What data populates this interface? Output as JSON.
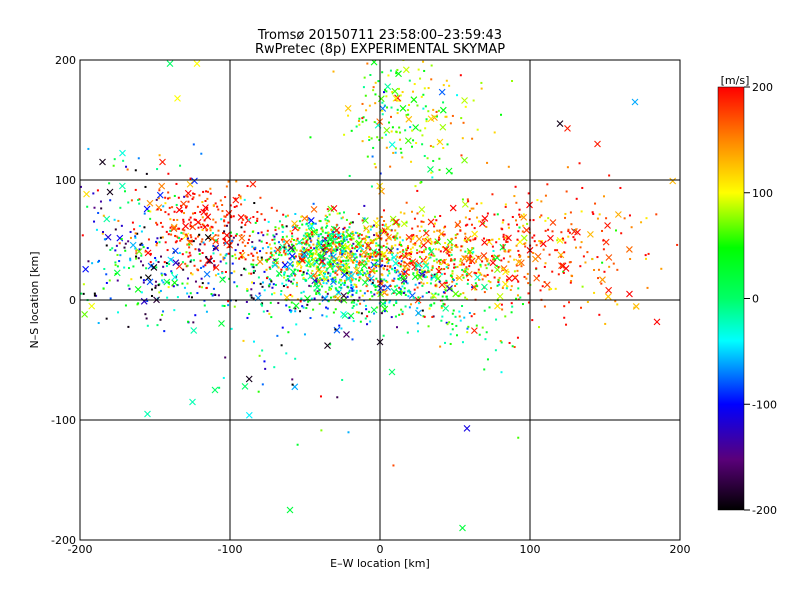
{
  "title_line1": "Tromsø 20150711 23:58:00–23:59:43",
  "title_line2": "RwPretec (8p) EXPERIMENTAL SKYMAP",
  "chart_data": {
    "type": "scatter",
    "xlabel": "E–W location [km]",
    "ylabel": "N–S location [km]",
    "xlim": [
      -200,
      200
    ],
    "ylim": [
      -200,
      200
    ],
    "xticks": [
      -200,
      -100,
      0,
      100,
      200
    ],
    "yticks": [
      -200,
      -100,
      0,
      100,
      200
    ],
    "grid": true,
    "marker_styles": [
      "dot",
      "x"
    ],
    "colorbar": {
      "label": "[m/s]",
      "range": [
        -200,
        200
      ],
      "ticks": [
        -200,
        -100,
        0,
        100,
        200
      ],
      "colormap": "black-purple-blue-cyan-green-yellow-red"
    },
    "clusters": [
      {
        "x": -38,
        "y": 40,
        "sx": 22,
        "sy": 14,
        "v": 45,
        "sv": 90,
        "n": 700
      },
      {
        "x": 30,
        "y": 38,
        "sx": 40,
        "sy": 18,
        "v": 140,
        "sv": 60,
        "n": 650
      },
      {
        "x": -115,
        "y": 60,
        "sx": 25,
        "sy": 20,
        "v": 190,
        "sv": 30,
        "n": 300
      },
      {
        "x": -120,
        "y": 20,
        "sx": 40,
        "sy": 20,
        "v": -80,
        "sv": 90,
        "n": 250
      },
      {
        "x": -10,
        "y": 10,
        "sx": 35,
        "sy": 15,
        "v": -20,
        "sv": 70,
        "n": 350
      },
      {
        "x": 110,
        "y": 40,
        "sx": 40,
        "sy": 30,
        "v": 170,
        "sv": 40,
        "n": 250
      },
      {
        "x": 15,
        "y": 150,
        "sx": 20,
        "sy": 30,
        "v": 60,
        "sv": 60,
        "n": 150
      },
      {
        "x": 60,
        "y": -10,
        "sx": 20,
        "sy": 20,
        "v": 20,
        "sv": 40,
        "n": 80
      },
      {
        "x": -170,
        "y": 60,
        "sx": 25,
        "sy": 30,
        "v": -50,
        "sv": 100,
        "n": 120
      },
      {
        "x": -60,
        "y": -30,
        "sx": 50,
        "sy": 40,
        "v": -50,
        "sv": 100,
        "n": 70
      },
      {
        "x": 30,
        "y": 160,
        "sx": 30,
        "sy": 25,
        "v": 100,
        "sv": 50,
        "n": 60
      }
    ],
    "outlier_points": [
      {
        "x": -155,
        "y": -95,
        "v": -20,
        "m": "x"
      },
      {
        "x": -125,
        "y": -85,
        "v": -20,
        "m": "x"
      },
      {
        "x": -110,
        "y": -75,
        "v": 0,
        "m": "x"
      },
      {
        "x": -90,
        "y": -72,
        "v": 0,
        "m": "x"
      },
      {
        "x": -60,
        "y": -175,
        "v": 20,
        "m": "x"
      },
      {
        "x": 55,
        "y": -190,
        "v": 20,
        "m": "x"
      },
      {
        "x": 58,
        "y": -107,
        "v": -110,
        "m": "x"
      },
      {
        "x": 170,
        "y": 165,
        "v": -60,
        "m": "x"
      },
      {
        "x": 120,
        "y": 147,
        "v": -190,
        "m": "x"
      },
      {
        "x": 125,
        "y": 143,
        "v": 190,
        "m": "x"
      },
      {
        "x": 145,
        "y": 130,
        "v": 190,
        "m": "x"
      },
      {
        "x": -35,
        "y": -38,
        "v": -190,
        "m": "x"
      },
      {
        "x": -122,
        "y": 197,
        "v": 100,
        "m": "x"
      },
      {
        "x": -140,
        "y": 197,
        "v": 0,
        "m": "x"
      },
      {
        "x": -135,
        "y": 168,
        "v": 100,
        "m": "x"
      },
      {
        "x": -185,
        "y": 115,
        "v": -190,
        "m": "x"
      },
      {
        "x": -180,
        "y": 90,
        "v": -190,
        "m": "x"
      },
      {
        "x": -145,
        "y": 115,
        "v": 190,
        "m": "x"
      },
      {
        "x": 0,
        "y": -35,
        "v": -190,
        "m": "x"
      },
      {
        "x": 8,
        "y": -60,
        "v": 0,
        "m": "x"
      }
    ]
  }
}
